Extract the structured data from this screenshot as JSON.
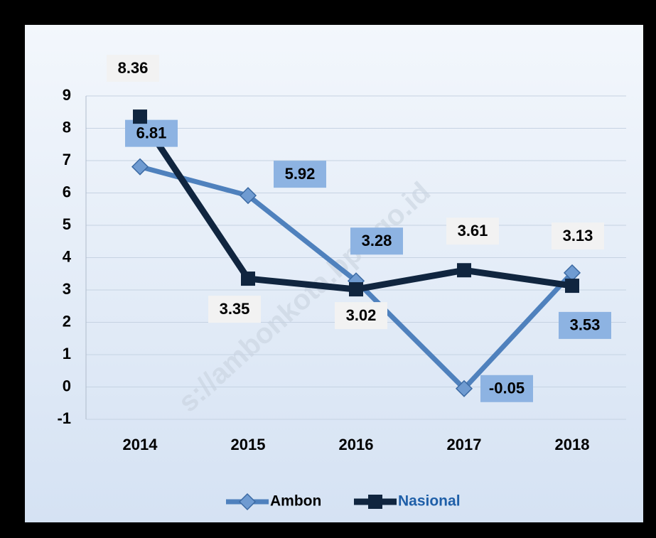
{
  "chart_data": {
    "type": "line",
    "categories": [
      "2014",
      "2015",
      "2016",
      "2017",
      "2018"
    ],
    "series": [
      {
        "name": "Ambon",
        "color": "#4f81bd",
        "values": [
          6.81,
          5.92,
          3.28,
          -0.05,
          3.53
        ]
      },
      {
        "name": "Nasional",
        "color": "#10253f",
        "values": [
          8.36,
          3.35,
          3.02,
          3.61,
          3.13
        ]
      }
    ],
    "ylim": [
      -1,
      9
    ],
    "yticks": [
      -1,
      0,
      1,
      2,
      3,
      4,
      5,
      6,
      7,
      8,
      9
    ],
    "grid": true,
    "legend": "bottom",
    "watermark": "s://ambonkota.bps.go.id"
  }
}
